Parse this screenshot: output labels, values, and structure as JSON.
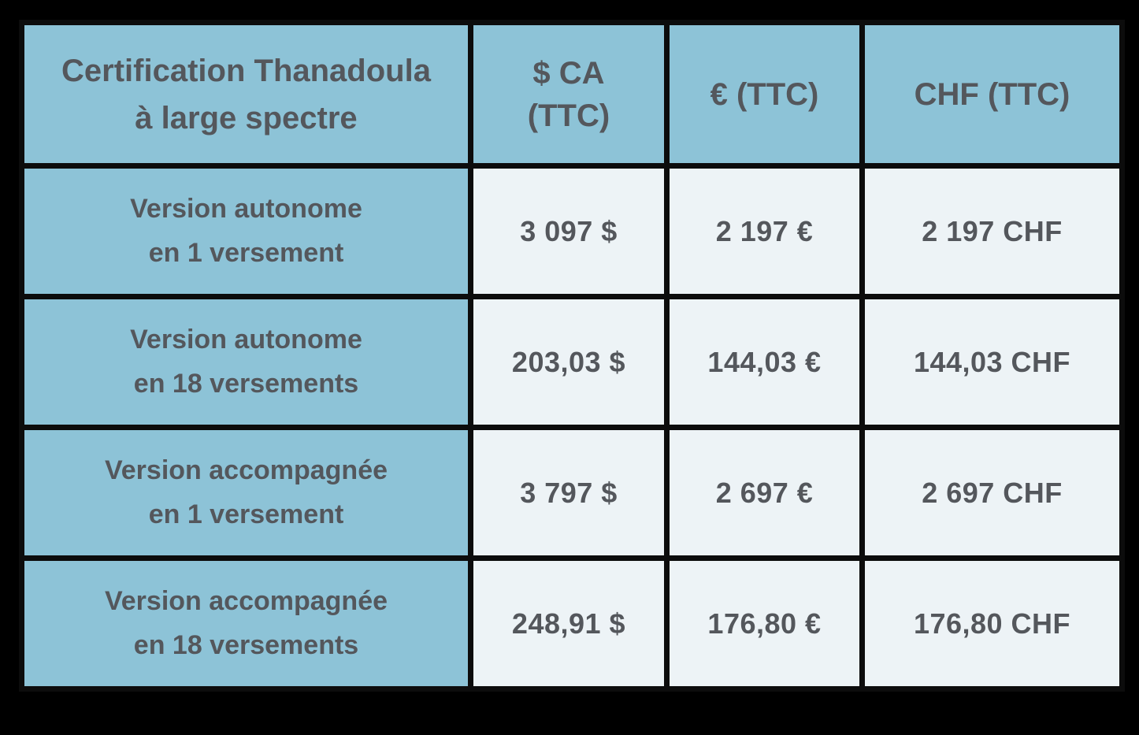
{
  "colors": {
    "background": "#000000",
    "header_bg": "#8dc3d7",
    "cell_bg": "#edf3f6",
    "border": "#0c0c0c",
    "text": "#54575c"
  },
  "header": {
    "product": {
      "line1": "Certification Thanadoula",
      "line2": "à large spectre"
    },
    "cad": {
      "line1": "$ CA",
      "line2": "(TTC)"
    },
    "eur": {
      "line1": "€ (TTC)"
    },
    "chf": {
      "line1": "CHF (TTC)"
    }
  },
  "rows": [
    {
      "label1": "Version autonome",
      "label2": "en 1 versement",
      "cad": "3 097 $",
      "eur": "2 197 €",
      "chf": "2 197 CHF"
    },
    {
      "label1": "Version autonome",
      "label2": "en 18 versements",
      "cad": "203,03 $",
      "eur": "144,03 €",
      "chf": "144,03 CHF"
    },
    {
      "label1": "Version accompagnée",
      "label2": "en 1 versement",
      "cad": "3 797 $",
      "eur": "2 697 €",
      "chf": "2 697 CHF"
    },
    {
      "label1": "Version accompagnée",
      "label2": "en 18 versements",
      "cad": "248,91 $",
      "eur": "176,80 €",
      "chf": "176,80 CHF"
    }
  ],
  "chart_data": {
    "type": "table",
    "title": "Certification Thanadoula à large spectre",
    "columns": [
      "Certification Thanadoula à large spectre",
      "$ CA (TTC)",
      "€ (TTC)",
      "CHF (TTC)"
    ],
    "rows": [
      [
        "Version autonome en 1 versement",
        "3 097 $",
        "2 197 €",
        "2 197 CHF"
      ],
      [
        "Version autonome en 18 versements",
        "203,03 $",
        "144,03 €",
        "144,03 CHF"
      ],
      [
        "Version accompagnée en 1 versement",
        "3 797 $",
        "2 697 €",
        "2 697 CHF"
      ],
      [
        "Version accompagnée en 18 versements",
        "248,91 $",
        "176,80 €",
        "176,80 CHF"
      ]
    ],
    "layout": {
      "grid": true,
      "header_background": "#8dc3d7",
      "cell_background": "#edf3f6"
    }
  }
}
